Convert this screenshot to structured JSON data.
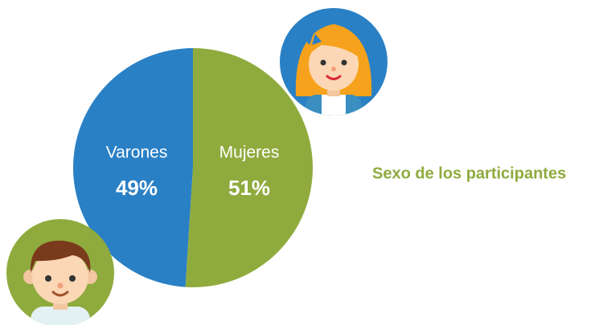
{
  "chart_data": {
    "type": "pie",
    "title": "Sexo de los participantes",
    "categories": [
      "Varones",
      "Mujeres"
    ],
    "values": [
      49,
      51
    ],
    "value_labels": [
      "49%",
      "51%"
    ],
    "colors": [
      "#2a80c5",
      "#8fab3e"
    ]
  }
}
